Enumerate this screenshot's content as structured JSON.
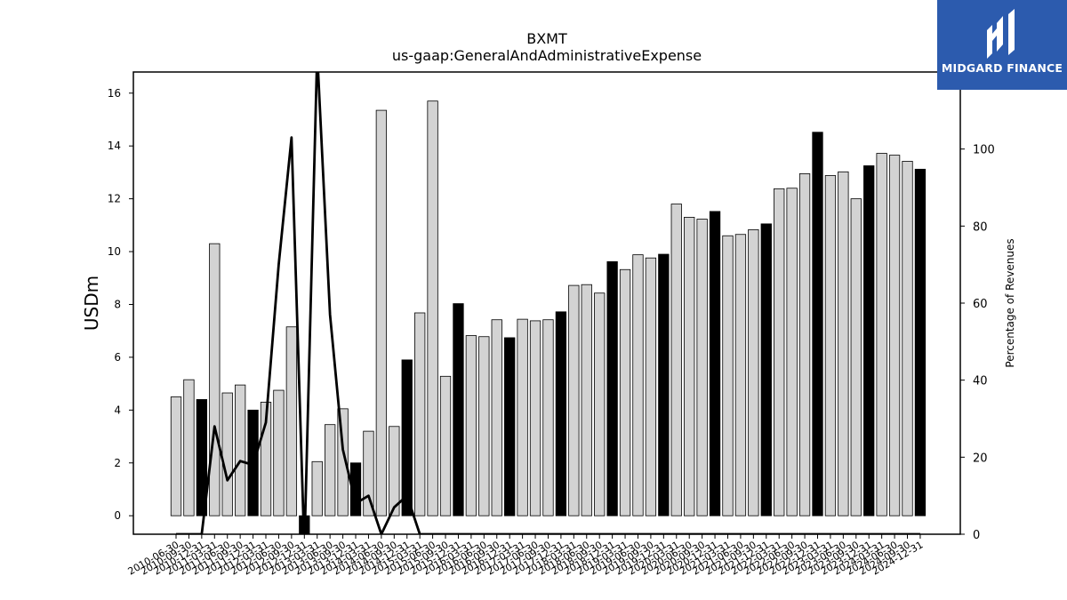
{
  "chart_data": {
    "type": "bar",
    "title": "BXMT",
    "subtitle": "us-gaap:GeneralAndAdministrativeExpense",
    "ylabel": "USDm",
    "y2label": "Percentage of Revenues",
    "ylim": [
      -0.7,
      16.8
    ],
    "y2lim": [
      0,
      120
    ],
    "yticks": [
      0,
      2,
      4,
      6,
      8,
      10,
      12,
      14,
      16
    ],
    "y2ticks": [
      0,
      20,
      40,
      60,
      80,
      100
    ],
    "grid": false,
    "categories": [
      "2010-06-30",
      "2010-09-30",
      "2010-12-31",
      "2011-03-31",
      "2011-06-30",
      "2011-09-30",
      "2011-12-31",
      "2012-03-31",
      "2012-06-30",
      "2012-09-30",
      "2012-12-31",
      "2013-03-31",
      "2013-06-30",
      "2013-09-30",
      "2013-12-31",
      "2014-03-31",
      "2014-06-30",
      "2014-09-30",
      "2014-12-31",
      "2015-03-31",
      "2015-06-30",
      "2015-09-30",
      "2015-12-31",
      "2016-03-31",
      "2016-06-30",
      "2016-09-30",
      "2016-12-31",
      "2017-03-31",
      "2017-06-30",
      "2017-09-30",
      "2017-12-31",
      "2018-03-31",
      "2018-06-30",
      "2018-09-30",
      "2018-12-31",
      "2019-03-31",
      "2019-06-30",
      "2019-09-30",
      "2019-12-31",
      "2020-03-31",
      "2020-06-30",
      "2020-09-30",
      "2020-12-31",
      "2021-03-31",
      "2021-06-30",
      "2021-09-30",
      "2021-12-31",
      "2022-03-31",
      "2022-06-30",
      "2022-09-30",
      "2022-12-31",
      "2023-03-31",
      "2023-06-30",
      "2023-09-30",
      "2023-12-31",
      "2024-03-31",
      "2024-06-30",
      "2024-09-30",
      "2024-12-31"
    ],
    "series": [
      {
        "kind": "bar",
        "values": [
          4.5,
          5.15,
          4.4,
          10.3,
          4.65,
          4.95,
          4.0,
          4.3,
          4.75,
          7.15,
          -0.7,
          2.05,
          3.45,
          4.05,
          2.0,
          3.2,
          15.35,
          3.38,
          5.9,
          7.68,
          15.7,
          5.28,
          8.03,
          6.82,
          6.78,
          7.42,
          6.74,
          7.44,
          7.38,
          7.42,
          7.72,
          8.72,
          8.75,
          8.43,
          9.62,
          9.32,
          9.88,
          9.76,
          9.9,
          11.8,
          11.3,
          11.23,
          11.52,
          10.6,
          10.65,
          10.83,
          11.05,
          12.38,
          12.4,
          12.95,
          14.52,
          12.88,
          13.02,
          12.0,
          13.25,
          13.72,
          13.65,
          13.42,
          13.12
        ],
        "highlight": [
          false,
          false,
          true,
          false,
          false,
          false,
          true,
          false,
          false,
          false,
          true,
          false,
          false,
          false,
          true,
          false,
          false,
          false,
          true,
          false,
          false,
          false,
          true,
          false,
          false,
          false,
          true,
          false,
          false,
          false,
          true,
          false,
          false,
          false,
          true,
          false,
          false,
          false,
          true,
          false,
          false,
          false,
          true,
          false,
          false,
          false,
          true,
          false,
          false,
          false,
          true,
          false,
          false,
          false,
          true,
          false,
          false,
          false,
          true
        ],
        "colors": {
          "normal": "#d3d3d3",
          "highlight": "#000000",
          "edge": "#000000"
        }
      },
      {
        "kind": "line",
        "axis": "right",
        "color": "#000000",
        "values": [
          0,
          0,
          0,
          28,
          14,
          19,
          18,
          29,
          70,
          103,
          -4,
          125,
          57,
          22,
          8,
          10,
          0,
          7,
          10,
          0,
          0,
          0,
          0,
          0,
          0,
          0,
          0,
          0,
          0,
          0,
          0,
          0,
          0,
          0,
          0,
          0,
          0,
          0,
          0,
          0,
          0,
          0,
          0,
          0,
          0,
          0,
          0,
          0,
          0,
          0,
          0,
          0,
          0,
          0,
          0,
          0,
          0,
          0,
          0
        ]
      }
    ]
  },
  "logo": {
    "text": "MIDGARD FINANCE",
    "bg": "#2c5bae"
  }
}
